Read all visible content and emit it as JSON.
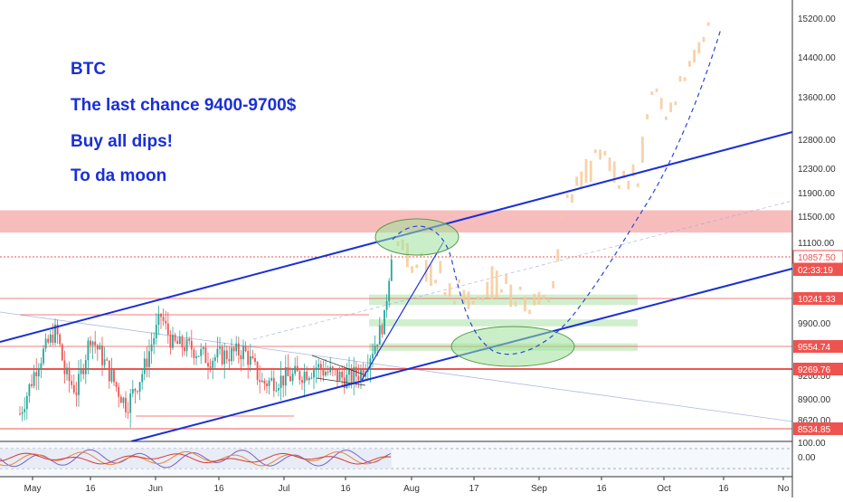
{
  "chart_data": {
    "type": "candlestick",
    "title": "",
    "annotations": [
      "BTC",
      "The last chance 9400-9700$",
      "Buy all dips!",
      "To da moon"
    ],
    "x_ticks": [
      "May",
      "16",
      "Jun",
      "16",
      "Jul",
      "16",
      "Aug",
      "17",
      "Sep",
      "16",
      "Oct",
      "16",
      "No"
    ],
    "y_ticks": [
      "15200.00",
      "14400.00",
      "13600.00",
      "12800.00",
      "12300.00",
      "11900.00",
      "11500.00",
      "11100.00",
      "9900.00",
      "9200.00",
      "8900.00",
      "8620.00"
    ],
    "price_labels": [
      {
        "text": "10857.50",
        "color": "#ef5350",
        "filled": false
      },
      {
        "text": "02:33:19",
        "color": "#ef5350",
        "filled": true
      },
      {
        "text": "10241.33",
        "color": "#ef5350",
        "filled": true
      },
      {
        "text": "9554.74",
        "color": "#ef5350",
        "filled": true
      },
      {
        "text": "9269.76",
        "color": "#ef5350",
        "filled": true
      },
      {
        "text": "8534.85",
        "color": "#ef5350",
        "filled": true
      }
    ],
    "resistance_zone": [
      11250,
      11600
    ],
    "support_zones": [
      [
        10150,
        10300
      ],
      [
        9850,
        9950
      ],
      [
        9500,
        9600
      ]
    ],
    "horizontal_levels": [
      10857.5,
      10241.33,
      9554.74,
      9269.76,
      8534.85
    ],
    "indicator_labels": [
      "100.00",
      "0.00"
    ],
    "colors": {
      "up": "#26a69a",
      "down": "#ef5350",
      "projection": "#f7c99a",
      "channel": "#1a2fd6",
      "annotation_text": "#1a2fd6",
      "resistance_zone": "#f4a7a7",
      "support_zone": "#c8ecc6",
      "ellipse": "#9ee29a"
    }
  }
}
